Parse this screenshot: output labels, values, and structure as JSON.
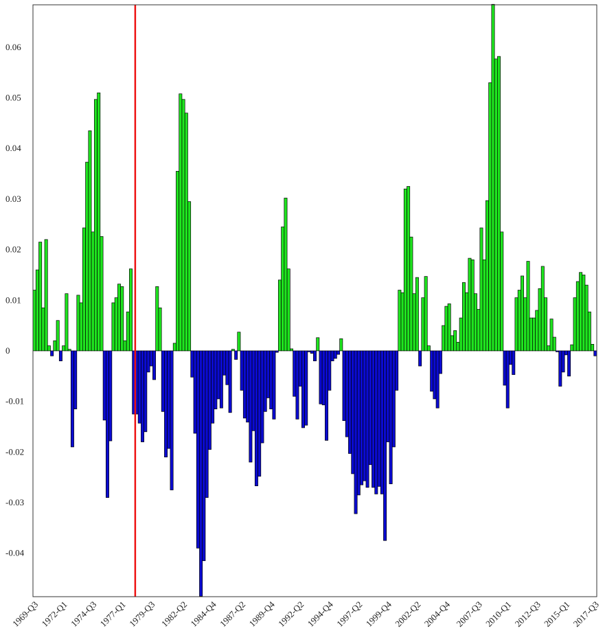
{
  "chart_data": {
    "type": "bar",
    "categories": [
      "1969-Q3",
      null,
      null,
      null,
      null,
      null,
      null,
      null,
      null,
      null,
      "1972-Q1",
      null,
      null,
      null,
      null,
      null,
      null,
      null,
      null,
      null,
      "1974-Q3",
      null,
      null,
      null,
      null,
      null,
      null,
      null,
      null,
      null,
      "1977-Q1",
      null,
      null,
      null,
      null,
      null,
      null,
      null,
      null,
      null,
      "1979-Q3",
      null,
      null,
      null,
      null,
      null,
      null,
      null,
      null,
      null,
      null,
      "1982-Q2",
      null,
      null,
      null,
      null,
      null,
      null,
      null,
      null,
      null,
      "1984-Q4",
      null,
      null,
      null,
      null,
      null,
      null,
      null,
      null,
      null,
      "1987-Q2",
      null,
      null,
      null,
      null,
      null,
      null,
      null,
      null,
      null,
      "1989-Q4",
      null,
      null,
      null,
      null,
      null,
      null,
      null,
      null,
      null,
      "1992-Q2",
      null,
      null,
      null,
      null,
      null,
      null,
      null,
      null,
      null,
      "1994-Q4",
      null,
      null,
      null,
      null,
      null,
      null,
      null,
      null,
      null,
      "1997-Q2",
      null,
      null,
      null,
      null,
      null,
      null,
      null,
      null,
      null,
      "1999-Q4",
      null,
      null,
      null,
      null,
      null,
      null,
      null,
      null,
      null,
      "2002-Q2",
      null,
      null,
      null,
      null,
      null,
      null,
      null,
      null,
      null,
      "2004-Q4",
      null,
      null,
      null,
      null,
      null,
      null,
      null,
      null,
      null,
      null,
      "2007-Q3",
      null,
      null,
      null,
      null,
      null,
      null,
      null,
      null,
      null,
      "2010-Q1",
      null,
      null,
      null,
      null,
      null,
      null,
      null,
      null,
      null,
      "2012-Q3",
      null,
      null,
      null,
      null,
      null,
      null,
      null,
      null,
      null,
      "2015-Q1",
      null,
      null,
      null,
      null,
      null,
      null,
      null,
      null,
      null,
      "2017-Q3"
    ],
    "values": [
      0.012,
      0.016,
      0.0215,
      0.0085,
      0.022,
      0.001,
      -0.001,
      0.002,
      0.006,
      -0.002,
      0.001,
      0.0113,
      0.0003,
      -0.019,
      -0.0115,
      0.011,
      0.0095,
      0.0243,
      0.0373,
      0.0435,
      0.0235,
      0.0497,
      0.051,
      0.0226,
      -0.0137,
      -0.029,
      -0.0178,
      0.0095,
      0.0105,
      0.0132,
      0.0127,
      0.002,
      0.0077,
      0.0162,
      -0.0125,
      -0.0125,
      -0.0143,
      -0.018,
      -0.016,
      -0.0042,
      -0.003,
      -0.0057,
      0.0127,
      0.0085,
      -0.012,
      -0.021,
      -0.0193,
      -0.0275,
      0.0015,
      0.0355,
      0.0508,
      0.0497,
      0.047,
      0.0295,
      -0.0052,
      -0.0163,
      -0.039,
      -0.0485,
      -0.0415,
      -0.029,
      -0.0195,
      -0.0143,
      -0.0115,
      -0.0095,
      -0.0113,
      -0.0048,
      -0.0067,
      -0.0122,
      0.0003,
      -0.0017,
      0.0037,
      -0.0078,
      -0.0133,
      -0.0141,
      -0.022,
      -0.0158,
      -0.0267,
      -0.0248,
      -0.0182,
      -0.012,
      -0.0093,
      -0.0115,
      -0.0135,
      -0.0003,
      0.014,
      0.0245,
      0.0302,
      0.0162,
      0.0004,
      -0.009,
      -0.0135,
      -0.007,
      -0.0152,
      -0.0147,
      -0.0002,
      -0.0005,
      -0.002,
      0.0026,
      -0.0105,
      -0.0107,
      -0.0177,
      -0.0078,
      -0.002,
      -0.0015,
      -0.0007,
      0.0024,
      -0.0138,
      -0.017,
      -0.0203,
      -0.0243,
      -0.0322,
      -0.0285,
      -0.0265,
      -0.0257,
      -0.027,
      -0.0225,
      -0.027,
      -0.0283,
      -0.0268,
      -0.0283,
      -0.0375,
      -0.018,
      -0.0263,
      -0.019,
      -0.0078,
      0.012,
      0.0115,
      0.032,
      0.0325,
      0.0225,
      0.0113,
      0.0145,
      -0.003,
      0.0105,
      0.0147,
      0.001,
      -0.008,
      -0.0095,
      -0.0113,
      -0.0045,
      0.005,
      0.0088,
      0.0093,
      0.003,
      0.004,
      0.0017,
      0.0065,
      0.0135,
      0.0115,
      0.0183,
      0.018,
      0.0113,
      0.0082,
      0.0243,
      0.018,
      0.0297,
      0.053,
      0.0685,
      0.0577,
      0.0582,
      0.0235,
      -0.0068,
      -0.0113,
      -0.0027,
      -0.0047,
      0.0105,
      0.012,
      0.0148,
      0.0105,
      0.0177,
      0.0065,
      0.0065,
      0.008,
      0.0123,
      0.0167,
      0.0105,
      0.001,
      0.0063,
      0.0027,
      -0.0002,
      -0.007,
      -0.0042,
      -0.0008,
      -0.005,
      0.0012,
      0.0105,
      0.0137,
      0.0155,
      0.015,
      0.013,
      0.0077,
      0.0013,
      -0.001
    ],
    "pos_color": "#1fe51f",
    "neg_color": "#0b0bd1",
    "ylim": [
      -0.0486,
      0.0684
    ],
    "yticks": [
      -0.04,
      -0.03,
      -0.02,
      -0.01,
      0,
      0.01,
      0.02,
      0.03,
      0.04,
      0.05,
      0.06
    ],
    "vline_index": 35,
    "vline_color": "#ee1111",
    "grid": false
  }
}
